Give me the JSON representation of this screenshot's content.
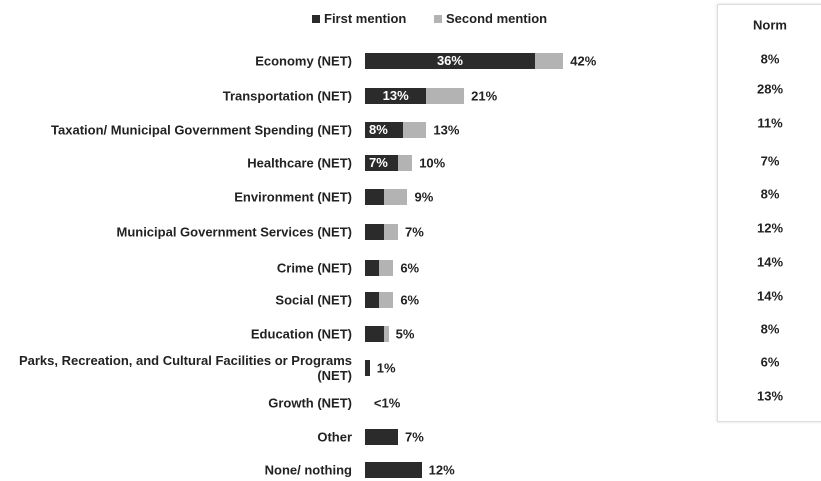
{
  "chart_data": {
    "type": "stacked-bar-horizontal",
    "categories": [
      "Economy (NET)",
      "Transportation (NET)",
      "Taxation/ Municipal Government Spending (NET)",
      "Healthcare (NET)",
      "Environment (NET)",
      "Municipal Government Services (NET)",
      "Crime (NET)",
      "Social (NET)",
      "Education (NET)",
      "Parks, Recreation, and Cultural Facilities or Programs (NET)",
      "Growth (NET)",
      "Other",
      "None/ nothing"
    ],
    "series": [
      {
        "name": "First mention",
        "color": "#2b2b2b",
        "values": [
          36,
          13,
          8,
          7,
          4,
          4,
          3,
          3,
          4,
          1,
          0,
          7,
          12
        ],
        "value_labels": [
          "36%",
          "13%",
          "8%",
          "7%",
          null,
          null,
          null,
          null,
          null,
          null,
          null,
          null,
          null
        ]
      },
      {
        "name": "Second mention",
        "color": "#b3b3b3",
        "values": [
          6,
          8,
          5,
          3,
          5,
          3,
          3,
          3,
          1,
          0,
          0,
          0,
          0
        ]
      }
    ],
    "totals": [
      42,
      21,
      13,
      10,
      9,
      7,
      6,
      6,
      5,
      1,
      0.4,
      7,
      12
    ],
    "total_labels": [
      "42%",
      "21%",
      "13%",
      "10%",
      "9%",
      "7%",
      "6%",
      "6%",
      "5%",
      "1%",
      "<1%",
      "7%",
      "12%"
    ],
    "legend": "top"
  },
  "norm": {
    "header": "Norm",
    "values": [
      "8%",
      "28%",
      "11%",
      "7%",
      "8%",
      "12%",
      "14%",
      "14%",
      "8%",
      "6%",
      "13%"
    ]
  }
}
